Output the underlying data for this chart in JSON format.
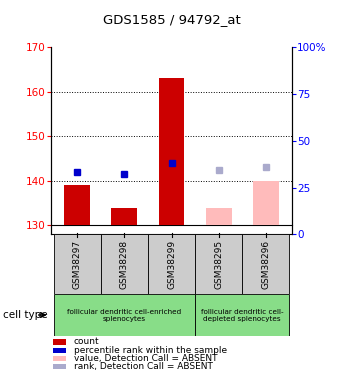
{
  "title": "GDS1585 / 94792_at",
  "samples": [
    "GSM38297",
    "GSM38298",
    "GSM38299",
    "GSM38295",
    "GSM38296"
  ],
  "bar_bases": [
    130,
    130,
    130,
    130,
    130
  ],
  "bar_tops_count": [
    139,
    134,
    163,
    134,
    140
  ],
  "bar_colors_count": [
    "#cc0000",
    "#cc0000",
    "#cc0000",
    "#ffbbbb",
    "#ffbbbb"
  ],
  "rank_values": [
    142,
    141.5,
    144,
    142.5,
    143
  ],
  "rank_colors": [
    "#0000cc",
    "#0000cc",
    "#0000cc",
    "#aaaacc",
    "#aaaacc"
  ],
  "ylim_left": [
    128,
    170
  ],
  "ylim_right": [
    0,
    100
  ],
  "yticks_left": [
    130,
    140,
    150,
    160,
    170
  ],
  "yticks_right": [
    0,
    25,
    50,
    75,
    100
  ],
  "ytick_labels_right": [
    "0",
    "25",
    "50",
    "75",
    "100%"
  ],
  "dotted_lines": [
    140,
    150,
    160
  ],
  "group1_label": "follicular dendritic cell-enriched\nsplenocytes",
  "group2_label": "follicular dendritic cell-\ndepleted splenocytes",
  "cell_type_label": "cell type",
  "legend_items": [
    {
      "label": "count",
      "color": "#cc0000"
    },
    {
      "label": "percentile rank within the sample",
      "color": "#0000cc"
    },
    {
      "label": "value, Detection Call = ABSENT",
      "color": "#ffbbbb"
    },
    {
      "label": "rank, Detection Call = ABSENT",
      "color": "#aaaacc"
    }
  ],
  "bar_width": 0.55,
  "plot_bg_color": "#ffffff",
  "sample_bg_color": "#cccccc",
  "cell_type_row_color": "#88dd88"
}
